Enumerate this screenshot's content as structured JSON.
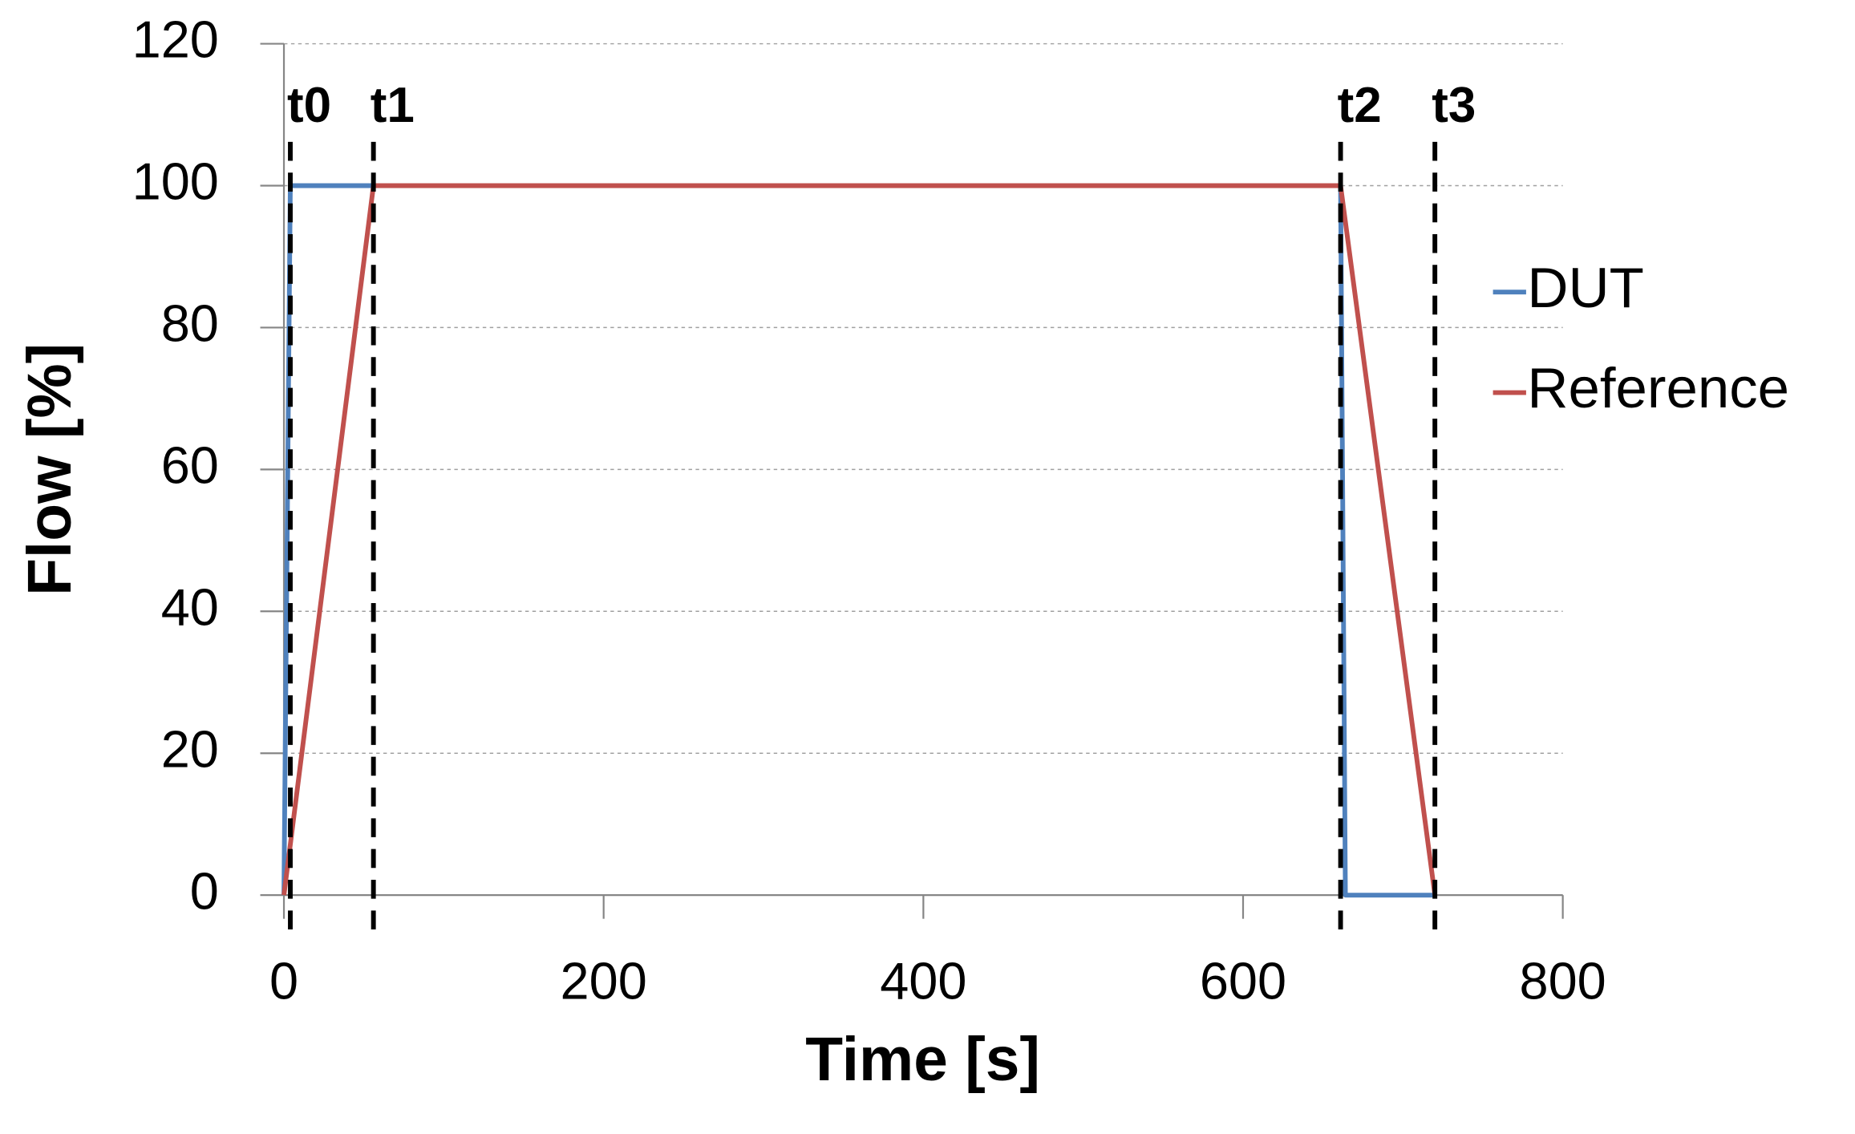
{
  "chart_data": {
    "type": "line",
    "x_label": "Time [s]",
    "y_label": "Flow [%]",
    "series": [
      {
        "name": "DUT",
        "color": "#4f81bd",
        "x": [
          0,
          4,
          661,
          664,
          720
        ],
        "values": [
          0,
          100,
          100,
          0,
          0
        ]
      },
      {
        "name": "Reference",
        "color": "#c0504d",
        "x": [
          0,
          56,
          661,
          720
        ],
        "values": [
          0,
          100,
          100,
          0
        ]
      }
    ],
    "markers": [
      {
        "x": 4,
        "label": "t0"
      },
      {
        "x": 56,
        "label": "t1"
      },
      {
        "x": 661,
        "label": "t2"
      },
      {
        "x": 720,
        "label": "t3"
      }
    ],
    "xlim": [
      0,
      800
    ],
    "xticks": [
      0,
      200,
      400,
      600,
      800
    ],
    "ylim": [
      0,
      120
    ],
    "yticks": [
      0,
      20,
      40,
      60,
      80,
      100,
      120
    ],
    "grid": true,
    "legend": "right"
  }
}
